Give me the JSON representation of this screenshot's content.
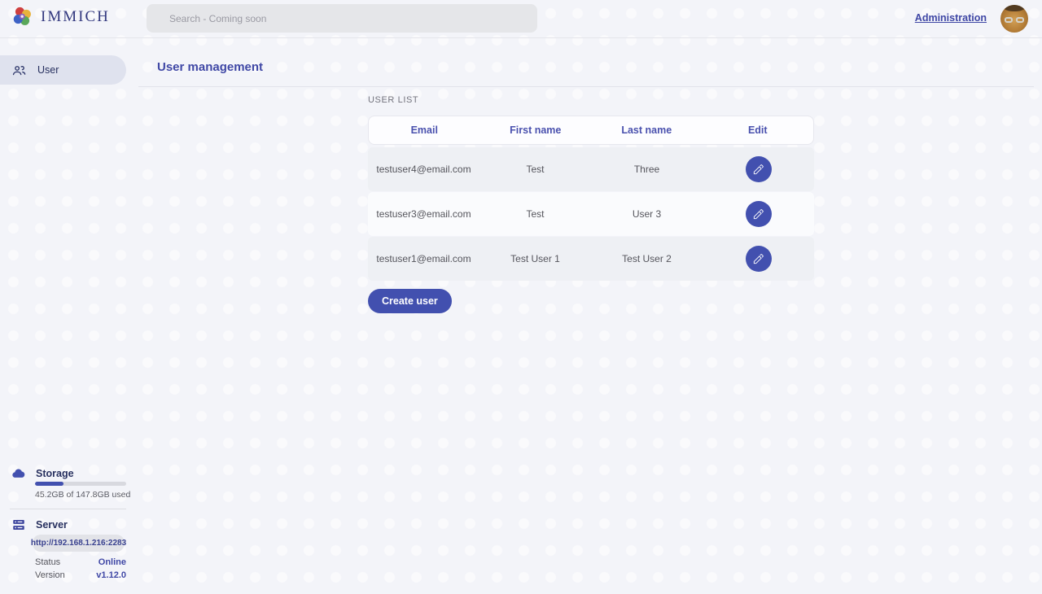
{
  "colors": {
    "primary": "#4250af",
    "title_text": "#3f47a5",
    "logo_text": "#33397f",
    "row_alt_bg": "#eef0f4",
    "badge_bg": "#e2e3e8",
    "online_status": "#3f47a5"
  },
  "brand": {
    "name": "IMMICH"
  },
  "topbar": {
    "search_placeholder": "Search - Coming soon",
    "admin_link": "Administration"
  },
  "sidebar": {
    "items": [
      {
        "label": "User",
        "icon": "people-icon"
      }
    ],
    "storage": {
      "title": "Storage",
      "icon": "cloud-icon",
      "usage_text": "45.2GB of 147.8GB used",
      "percent": 31
    },
    "server": {
      "title": "Server",
      "icon": "server-icon",
      "url": "http://192.168.1.216:2283",
      "info": [
        {
          "label": "Status",
          "value": "Online"
        },
        {
          "label": "Version",
          "value": "v1.12.0"
        }
      ]
    }
  },
  "main": {
    "title": "User management",
    "section_label": "USER LIST",
    "table": {
      "headers": [
        "Email",
        "First name",
        "Last name",
        "Edit"
      ],
      "rows": [
        {
          "email": "testuser4@email.com",
          "first_name": "Test",
          "last_name": "Three"
        },
        {
          "email": "testuser3@email.com",
          "first_name": "Test",
          "last_name": "User 3"
        },
        {
          "email": "testuser1@email.com",
          "first_name": "Test User 1",
          "last_name": "Test User 2"
        }
      ]
    },
    "create_button": "Create user"
  }
}
